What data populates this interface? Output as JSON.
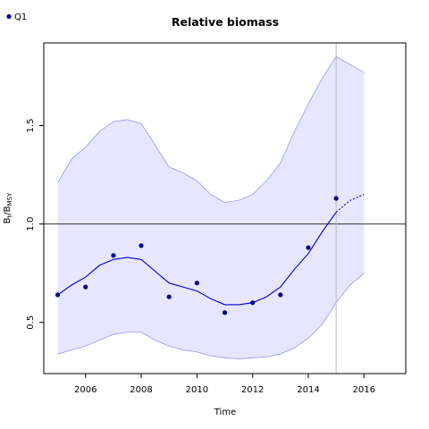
{
  "chart_data": {
    "type": "line",
    "title": "Relative biomass",
    "xlabel": "Time",
    "ylabel_main": "B",
    "ylabel_sub1": "t",
    "ylabel_sep": "/B",
    "ylabel_sub2": "MSY",
    "xlim": [
      2004.5,
      2017.5
    ],
    "ylim": [
      0.24,
      1.92
    ],
    "x_ticks": [
      2006,
      2008,
      2010,
      2012,
      2014,
      2016
    ],
    "y_ticks": [
      0.5,
      1.0,
      1.5
    ],
    "y_tick_labels": [
      "0.5",
      "1.0",
      "1.5"
    ],
    "reference_hline": 1.0,
    "reference_vline": 2015,
    "grid": false,
    "legend_position": "top-left",
    "colors": {
      "line": "#0000cc",
      "points": "#00008b",
      "band_fill": "#e6e6ff",
      "band_edge": "#8a8af0",
      "hline": "#333333",
      "vline": "#bbbbbb"
    },
    "series": [
      {
        "name": "Q1",
        "kind": "observed_points",
        "x": [
          2005,
          2006,
          2007,
          2008,
          2009,
          2010,
          2011,
          2012,
          2013,
          2014,
          2015
        ],
        "y": [
          0.64,
          0.68,
          0.84,
          0.89,
          0.63,
          0.7,
          0.55,
          0.6,
          0.64,
          0.88,
          1.13
        ]
      },
      {
        "kind": "fitted",
        "x": [
          2005,
          2005.5,
          2006,
          2006.5,
          2007,
          2007.5,
          2008,
          2008.5,
          2009,
          2009.5,
          2010,
          2010.5,
          2011,
          2011.5,
          2012,
          2012.5,
          2013,
          2013.5,
          2014,
          2014.5,
          2015
        ],
        "y": [
          0.64,
          0.69,
          0.73,
          0.79,
          0.82,
          0.83,
          0.82,
          0.76,
          0.7,
          0.68,
          0.66,
          0.62,
          0.59,
          0.59,
          0.6,
          0.63,
          0.68,
          0.77,
          0.85,
          0.96,
          1.06
        ]
      },
      {
        "kind": "predicted",
        "x": [
          2015,
          2015.5,
          2016
        ],
        "y": [
          1.06,
          1.12,
          1.15
        ]
      },
      {
        "kind": "ci_upper",
        "x": [
          2005,
          2005.5,
          2006,
          2006.5,
          2007,
          2007.5,
          2008,
          2008.5,
          2009,
          2009.5,
          2010,
          2010.5,
          2011,
          2011.5,
          2012,
          2012.5,
          2013,
          2013.5,
          2014,
          2014.5,
          2015,
          2015.5,
          2016
        ],
        "y": [
          1.21,
          1.33,
          1.39,
          1.47,
          1.52,
          1.53,
          1.51,
          1.4,
          1.29,
          1.26,
          1.22,
          1.15,
          1.11,
          1.12,
          1.15,
          1.22,
          1.31,
          1.47,
          1.61,
          1.74,
          1.85,
          1.81,
          1.77
        ]
      },
      {
        "kind": "ci_lower",
        "x": [
          2005,
          2005.5,
          2006,
          2006.5,
          2007,
          2007.5,
          2008,
          2008.5,
          2009,
          2009.5,
          2010,
          2010.5,
          2011,
          2011.5,
          2012,
          2012.5,
          2013,
          2013.5,
          2014,
          2014.5,
          2015,
          2015.5,
          2016
        ],
        "y": [
          0.34,
          0.36,
          0.38,
          0.41,
          0.44,
          0.45,
          0.45,
          0.41,
          0.38,
          0.36,
          0.35,
          0.33,
          0.32,
          0.315,
          0.32,
          0.325,
          0.34,
          0.37,
          0.42,
          0.49,
          0.6,
          0.69,
          0.75
        ]
      }
    ]
  }
}
